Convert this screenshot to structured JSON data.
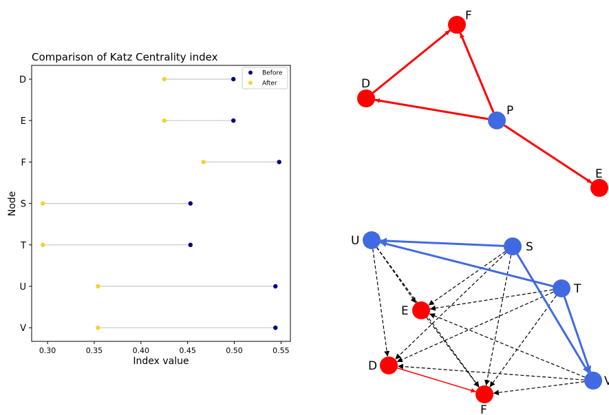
{
  "chart_data": [
    {
      "type": "dumbbell",
      "title": "Comparison of Katz Centrality index",
      "xlabel": "Index value",
      "ylabel": "Node",
      "xlim": [
        0.283,
        0.56
      ],
      "x_ticks": [
        "0.30",
        "0.35",
        "0.40",
        "0.45",
        "0.50",
        "0.55"
      ],
      "x_tick_values": [
        0.3,
        0.35,
        0.4,
        0.45,
        0.5,
        0.55
      ],
      "categories": [
        "D",
        "E",
        "F",
        "S",
        "T",
        "U",
        "V"
      ],
      "series": [
        {
          "name": "Before",
          "color": "#000080",
          "values": [
            0.499,
            0.499,
            0.548,
            0.453,
            0.453,
            0.544,
            0.544
          ]
        },
        {
          "name": "After",
          "color": "#f5d130",
          "values": [
            0.425,
            0.425,
            0.467,
            0.295,
            0.295,
            0.354,
            0.354
          ]
        }
      ],
      "connector_color": "#c8c8c8",
      "legend_position": "top-right",
      "grid": false
    },
    {
      "type": "network",
      "nodes": [
        {
          "id": "F",
          "label": "F",
          "color": "#ff0000"
        },
        {
          "id": "D",
          "label": "D",
          "color": "#ff0000"
        },
        {
          "id": "P",
          "label": "P",
          "color": "#4169e1"
        },
        {
          "id": "E",
          "label": "E",
          "color": "#ff0000"
        }
      ],
      "edges": [
        {
          "from": "P",
          "to": "F",
          "style": "solid",
          "color": "#ff0000"
        },
        {
          "from": "P",
          "to": "D",
          "style": "solid",
          "color": "#ff0000"
        },
        {
          "from": "D",
          "to": "F",
          "style": "solid",
          "color": "#ff0000"
        },
        {
          "from": "P",
          "to": "E",
          "style": "solid",
          "color": "#ff0000"
        }
      ]
    },
    {
      "type": "network",
      "nodes": [
        {
          "id": "U",
          "label": "U",
          "color": "#4169e1"
        },
        {
          "id": "S",
          "label": "S",
          "color": "#4169e1"
        },
        {
          "id": "T",
          "label": "T",
          "color": "#4169e1"
        },
        {
          "id": "E",
          "label": "E",
          "color": "#ff0000"
        },
        {
          "id": "D",
          "label": "D",
          "color": "#ff0000"
        },
        {
          "id": "V",
          "label": "V",
          "color": "#4169e1"
        },
        {
          "id": "F",
          "label": "F",
          "color": "#ff0000"
        }
      ],
      "edges": [
        {
          "from": "S",
          "to": "U",
          "style": "solid",
          "color": "#4169e1"
        },
        {
          "from": "T",
          "to": "U",
          "style": "solid",
          "color": "#4169e1"
        },
        {
          "from": "S",
          "to": "V",
          "style": "solid",
          "color": "#4169e1"
        },
        {
          "from": "T",
          "to": "V",
          "style": "solid",
          "color": "#4169e1"
        },
        {
          "from": "D",
          "to": "F",
          "style": "solid",
          "color": "#ff0000"
        },
        {
          "from": "U",
          "to": "E",
          "style": "dashed",
          "color": "#000000"
        },
        {
          "from": "U",
          "to": "D",
          "style": "dashed",
          "color": "#000000"
        },
        {
          "from": "U",
          "to": "F",
          "style": "dashed",
          "color": "#000000"
        },
        {
          "from": "S",
          "to": "E",
          "style": "dashed",
          "color": "#000000"
        },
        {
          "from": "S",
          "to": "D",
          "style": "dashed",
          "color": "#000000"
        },
        {
          "from": "S",
          "to": "F",
          "style": "dashed",
          "color": "#000000"
        },
        {
          "from": "T",
          "to": "E",
          "style": "dashed",
          "color": "#000000"
        },
        {
          "from": "T",
          "to": "D",
          "style": "dashed",
          "color": "#000000"
        },
        {
          "from": "T",
          "to": "F",
          "style": "dashed",
          "color": "#000000"
        },
        {
          "from": "V",
          "to": "E",
          "style": "dashed",
          "color": "#000000"
        },
        {
          "from": "V",
          "to": "D",
          "style": "dashed",
          "color": "#000000"
        },
        {
          "from": "V",
          "to": "F",
          "style": "dashed",
          "color": "#000000"
        },
        {
          "from": "E",
          "to": "F",
          "style": "dashed",
          "color": "#000000"
        }
      ]
    }
  ]
}
